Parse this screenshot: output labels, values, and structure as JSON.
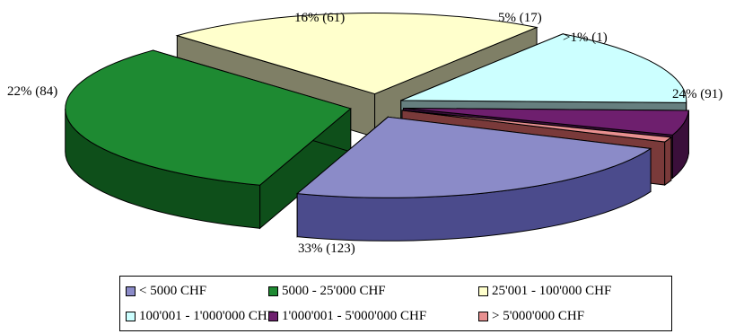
{
  "chart_data": {
    "type": "pie",
    "style": "3d-exploded",
    "slices": [
      {
        "label": "< 5000 CHF",
        "percent": 24,
        "count": 91,
        "data_label": "24% (91)",
        "color": "#8B8BC8",
        "side_color": "#4B4B8C"
      },
      {
        "label": "5000 - 25'000 CHF",
        "percent": 33,
        "count": 123,
        "data_label": "33% (123)",
        "color": "#1E8A32",
        "side_color": "#0E4F1A"
      },
      {
        "label": "25'001 - 100'000 CHF",
        "percent": 22,
        "count": 84,
        "data_label": "22% (84)",
        "color": "#FFFFCC",
        "side_color": "#7F7F66"
      },
      {
        "label": "100'001 - 1'000'000 CHF",
        "percent": 16,
        "count": 61,
        "data_label": "16% (61)",
        "color": "#CCFFFF",
        "side_color": "#667F7F"
      },
      {
        "label": "1'000'001 - 5'000'000 CHF",
        "percent": 5,
        "count": 17,
        "data_label": "5% (17)",
        "color": "#6E1F6E",
        "side_color": "#3A0F3A"
      },
      {
        "label": "> 5'000'000 CHF",
        "percent": 1,
        "count": 1,
        "data_label": ">1% (1)",
        "color": "#E89090",
        "side_color": "#7A3A3A"
      }
    ],
    "legend_position": "bottom"
  }
}
